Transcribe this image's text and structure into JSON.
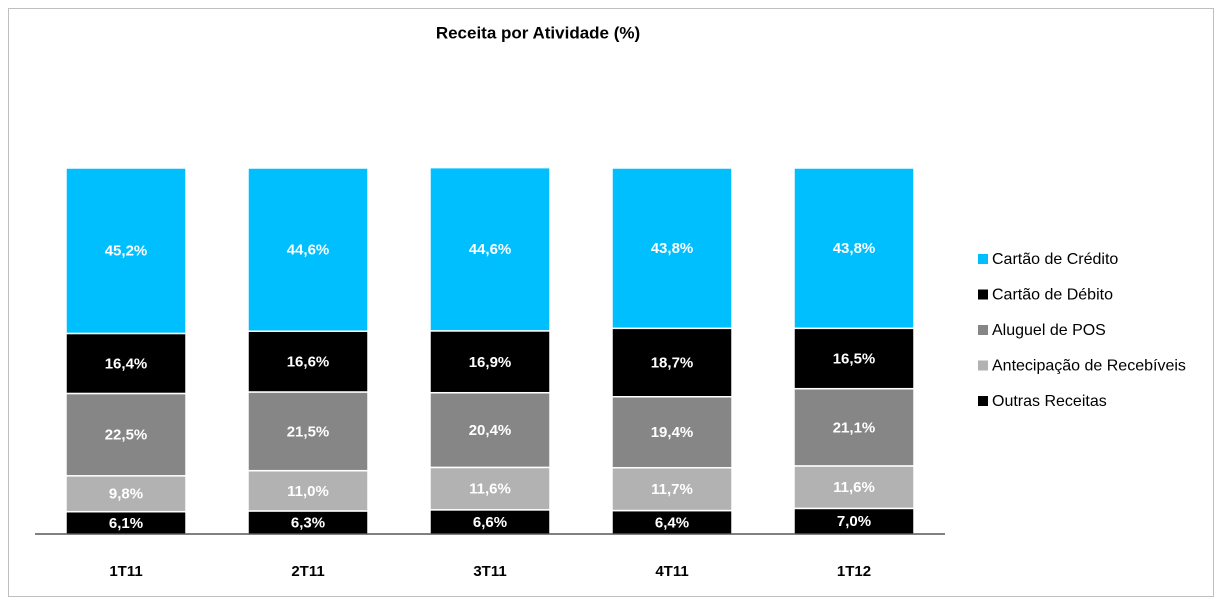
{
  "chart_data": {
    "type": "stacked_bar",
    "title": "Receita por Atividade (%)",
    "categories": [
      "1T11",
      "2T11",
      "3T11",
      "4T11",
      "1T12"
    ],
    "ylim": [
      0,
      100
    ],
    "series": [
      {
        "name": "Cartão de Crédito",
        "color": "#00bfff",
        "values": [
          45.2,
          44.6,
          44.6,
          43.8,
          43.8
        ],
        "value_labels": [
          "45,2%",
          "44,6%",
          "44,6%",
          "43,8%",
          "43,8%"
        ]
      },
      {
        "name": "Cartão de Débito",
        "color": "#000000",
        "values": [
          16.4,
          16.6,
          16.9,
          18.7,
          16.5
        ],
        "value_labels": [
          "16,4%",
          "16,6%",
          "16,9%",
          "18,7%",
          "16,5%"
        ]
      },
      {
        "name": "Aluguel de POS",
        "color": "#868686",
        "values": [
          22.5,
          21.5,
          20.4,
          19.4,
          21.1
        ],
        "value_labels": [
          "22,5%",
          "21,5%",
          "20,4%",
          "19,4%",
          "21,1%"
        ]
      },
      {
        "name": "Antecipação de Recebíveis",
        "color": "#b2b2b2",
        "values": [
          9.8,
          11.0,
          11.6,
          11.7,
          11.6
        ],
        "value_labels": [
          "9,8%",
          "11,0%",
          "11,6%",
          "11,7%",
          "11,6%"
        ]
      },
      {
        "name": "Outras Receitas",
        "color": "#000000",
        "values": [
          6.1,
          6.3,
          6.6,
          6.4,
          7.0
        ],
        "value_labels": [
          "6,1%",
          "6,3%",
          "6,6%",
          "6,4%",
          "7,0%"
        ]
      }
    ],
    "legend": "right"
  }
}
